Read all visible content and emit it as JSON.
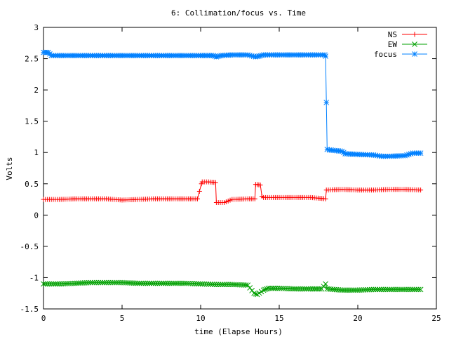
{
  "chart_data": {
    "type": "line",
    "title": "6: Collimation/focus vs. Time",
    "xlabel": "time (Elapse Hours)",
    "ylabel": "Volts",
    "xlim": [
      0,
      25
    ],
    "ylim": [
      -1.5,
      3
    ],
    "xticks": [
      0,
      5,
      10,
      15,
      20,
      25
    ],
    "xtick_labels": [
      "0",
      "5",
      "10",
      "15",
      "20",
      "25"
    ],
    "yticks": [
      -1.5,
      -1,
      -0.5,
      0,
      0.5,
      1,
      1.5,
      2,
      2.5,
      3
    ],
    "ytick_labels": [
      "-1.5",
      "-1",
      "-0.5",
      "0",
      "0.5",
      "1",
      "1.5",
      "2",
      "2.5",
      "3"
    ],
    "grid": false,
    "legend_position": "top-right",
    "series": [
      {
        "name": "NS",
        "color": "#ff0000",
        "marker": "plus",
        "x": [
          0,
          1,
          2,
          3,
          4,
          5,
          6,
          7,
          8,
          9,
          9.8,
          10.05,
          10.1,
          10.5,
          10.95,
          11.0,
          11.5,
          12,
          13,
          13.45,
          13.5,
          13.8,
          13.9,
          14,
          15,
          16,
          17,
          17.95,
          18.0,
          19,
          20,
          21,
          22,
          23,
          24
        ],
        "y": [
          0.25,
          0.25,
          0.26,
          0.26,
          0.26,
          0.24,
          0.25,
          0.26,
          0.26,
          0.26,
          0.26,
          0.5,
          0.53,
          0.53,
          0.52,
          0.2,
          0.2,
          0.25,
          0.26,
          0.26,
          0.49,
          0.48,
          0.3,
          0.28,
          0.28,
          0.28,
          0.28,
          0.26,
          0.4,
          0.41,
          0.4,
          0.4,
          0.41,
          0.41,
          0.4
        ]
      },
      {
        "name": "EW",
        "color": "#00a000",
        "marker": "cross",
        "x": [
          0,
          1,
          2,
          3,
          4,
          5,
          6,
          7,
          8,
          9,
          10,
          11,
          12,
          13,
          13.4,
          13.6,
          14,
          14.3,
          15,
          16,
          17,
          17.7,
          17.95,
          18.05,
          19,
          20,
          21,
          22,
          23,
          24
        ],
        "y": [
          -1.1,
          -1.1,
          -1.09,
          -1.08,
          -1.08,
          -1.08,
          -1.09,
          -1.09,
          -1.09,
          -1.09,
          -1.1,
          -1.11,
          -1.11,
          -1.12,
          -1.25,
          -1.27,
          -1.2,
          -1.17,
          -1.17,
          -1.18,
          -1.18,
          -1.18,
          -1.1,
          -1.18,
          -1.2,
          -1.2,
          -1.19,
          -1.19,
          -1.19,
          -1.19
        ]
      },
      {
        "name": "focus",
        "color": "#0080ff",
        "marker": "star",
        "x": [
          0,
          0.3,
          0.5,
          1,
          2,
          3,
          4,
          5,
          6,
          7,
          8,
          9,
          10,
          10.8,
          11.0,
          11.3,
          12,
          13,
          13.5,
          13.7,
          14,
          15,
          16,
          17,
          17.9,
          17.95,
          18.0,
          18.05,
          18.2,
          19,
          19.2,
          20,
          21,
          21.5,
          22,
          23,
          23.5,
          24
        ],
        "y": [
          2.6,
          2.6,
          2.55,
          2.55,
          2.55,
          2.55,
          2.55,
          2.55,
          2.55,
          2.55,
          2.55,
          2.55,
          2.55,
          2.55,
          2.53,
          2.55,
          2.56,
          2.56,
          2.53,
          2.54,
          2.56,
          2.56,
          2.56,
          2.56,
          2.56,
          2.54,
          1.8,
          1.05,
          1.04,
          1.02,
          0.98,
          0.97,
          0.96,
          0.94,
          0.94,
          0.95,
          0.99,
          0.99
        ]
      }
    ]
  }
}
